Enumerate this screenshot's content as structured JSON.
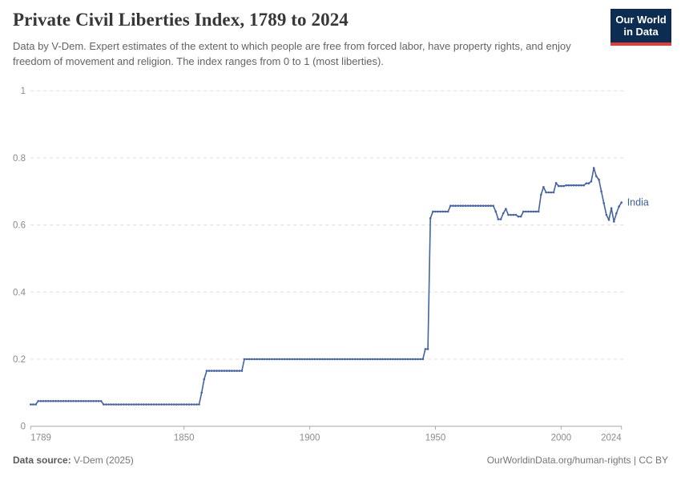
{
  "header": {
    "title": "Private Civil Liberties Index, 1789 to 2024",
    "subtitle": "Data by V-Dem. Expert estimates of the extent to which people are free from forced labor, have property rights, and enjoy freedom of movement and religion. The index ranges from 0 to 1 (most liberties).",
    "logo": {
      "line1": "Our World",
      "line2": "in Data"
    }
  },
  "chart_data": {
    "type": "line",
    "title": "Private Civil Liberties Index, 1789 to 2024",
    "xlabel": "",
    "ylabel": "",
    "xlim": [
      1789,
      2024
    ],
    "ylim": [
      0,
      1
    ],
    "x_ticks": [
      1789,
      1850,
      1900,
      1950,
      2000,
      2024
    ],
    "y_ticks": [
      0,
      0.2,
      0.4,
      0.6,
      0.8,
      1
    ],
    "grid": "horizontal-dashed",
    "legend_position": "end-of-line-label",
    "series": [
      {
        "name": "India",
        "color": "#44639f",
        "segments_note": "each entry is [startYear, endYear, value]; yearly data points",
        "segments": [
          [
            1789,
            1791,
            0.065
          ],
          [
            1792,
            1817,
            0.075
          ],
          [
            1818,
            1856,
            0.065
          ],
          [
            1857,
            1857,
            0.1
          ],
          [
            1858,
            1858,
            0.14
          ],
          [
            1859,
            1873,
            0.165
          ],
          [
            1874,
            1945,
            0.2
          ],
          [
            1946,
            1947,
            0.23
          ],
          [
            1948,
            1948,
            0.62
          ],
          [
            1949,
            1955,
            0.64
          ],
          [
            1956,
            1973,
            0.657
          ],
          [
            1974,
            1974,
            0.64
          ],
          [
            1975,
            1976,
            0.617
          ],
          [
            1977,
            1977,
            0.635
          ],
          [
            1978,
            1978,
            0.648
          ],
          [
            1979,
            1982,
            0.63
          ],
          [
            1983,
            1984,
            0.625
          ],
          [
            1985,
            1991,
            0.64
          ],
          [
            1992,
            1992,
            0.69
          ],
          [
            1993,
            1993,
            0.713
          ],
          [
            1994,
            1997,
            0.697
          ],
          [
            1998,
            1998,
            0.725
          ],
          [
            1999,
            2001,
            0.716
          ],
          [
            2002,
            2009,
            0.718
          ],
          [
            2010,
            2011,
            0.724
          ],
          [
            2012,
            2012,
            0.73
          ],
          [
            2013,
            2013,
            0.77
          ],
          [
            2014,
            2014,
            0.745
          ],
          [
            2015,
            2015,
            0.735
          ],
          [
            2016,
            2016,
            0.7
          ],
          [
            2017,
            2017,
            0.665
          ],
          [
            2018,
            2018,
            0.63
          ],
          [
            2019,
            2019,
            0.615
          ],
          [
            2020,
            2020,
            0.65
          ],
          [
            2021,
            2021,
            0.61
          ],
          [
            2022,
            2022,
            0.635
          ],
          [
            2023,
            2023,
            0.655
          ],
          [
            2024,
            2024,
            0.667
          ]
        ]
      }
    ]
  },
  "footer": {
    "source_label": "Data source:",
    "source_value": "V-Dem (2025)",
    "license": "OurWorldinData.org/human-rights | CC BY"
  },
  "colors": {
    "line": "#44639f",
    "entity_label": "#3d5b99",
    "grid": "#dedede",
    "axis_line": "#a8a8a8",
    "tick_label": "#8b8b8b",
    "logo_bg": "#0c2d51",
    "logo_red": "#e23d3d"
  }
}
